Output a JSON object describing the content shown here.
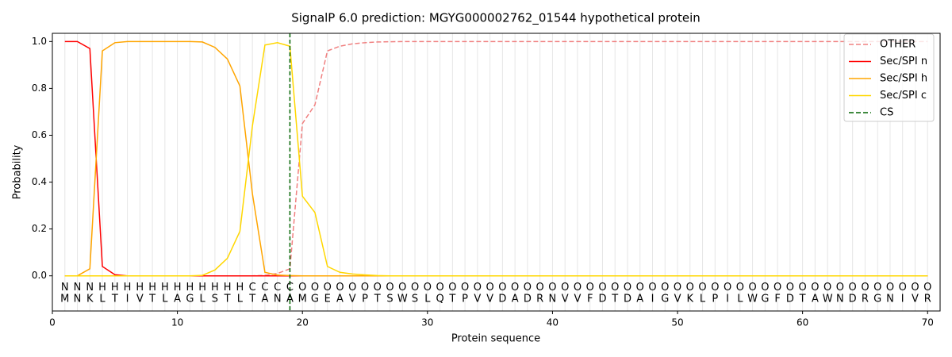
{
  "chart_data": {
    "type": "line",
    "title": "SignalP 6.0 prediction: MGYG000002762_01544 hypothetical protein",
    "x_label": "Protein sequence",
    "y_label": "Probability",
    "xlim": [
      0,
      71
    ],
    "ylim": [
      -0.15,
      1.035
    ],
    "xticks": [
      0,
      10,
      20,
      30,
      40,
      50,
      60,
      70
    ],
    "yticks": [
      {
        "value": 0,
        "label": "0.0"
      },
      {
        "value": 0.2,
        "label": "0.2"
      },
      {
        "value": 0.4,
        "label": "0.4"
      },
      {
        "value": 0.6,
        "label": "0.6"
      },
      {
        "value": 0.8,
        "label": "0.8"
      },
      {
        "value": 1,
        "label": "1.0"
      }
    ],
    "vertical_grid": true,
    "legend_position": "upper right",
    "x": [
      1,
      2,
      3,
      4,
      5,
      6,
      7,
      8,
      9,
      10,
      11,
      12,
      13,
      14,
      15,
      16,
      17,
      18,
      19,
      20,
      21,
      22,
      23,
      24,
      25,
      26,
      27,
      28,
      29,
      30,
      31,
      32,
      33,
      34,
      35,
      36,
      37,
      38,
      39,
      40,
      41,
      42,
      43,
      44,
      45,
      46,
      47,
      48,
      49,
      50,
      51,
      52,
      53,
      54,
      55,
      56,
      57,
      58,
      59,
      60,
      61,
      62,
      63,
      64,
      65,
      66,
      67,
      68,
      69,
      70
    ],
    "series": [
      {
        "name": "OTHER",
        "color": "#f08080",
        "dashed": true,
        "values": [
          0,
          0,
          0,
          0,
          0,
          0,
          0,
          0,
          0,
          0,
          0,
          0,
          0,
          0,
          0,
          0,
          0.002,
          0.01,
          0.03,
          0.65,
          0.73,
          0.96,
          0.98,
          0.99,
          0.995,
          0.998,
          0.999,
          1,
          1,
          1,
          1,
          1,
          1,
          1,
          1,
          1,
          1,
          1,
          1,
          1,
          1,
          1,
          1,
          1,
          1,
          1,
          1,
          1,
          1,
          1,
          1,
          1,
          1,
          1,
          1,
          1,
          1,
          1,
          1,
          1,
          1,
          1,
          1,
          1,
          1,
          1,
          1,
          1,
          1,
          1
        ]
      },
      {
        "name": "Sec/SPI n",
        "color": "#ff0000",
        "dashed": false,
        "values": [
          1,
          1,
          0.97,
          0.04,
          0.005,
          0,
          0,
          0,
          0,
          0,
          0,
          0,
          0,
          0,
          0,
          0,
          0,
          0,
          0,
          0,
          0,
          0,
          0,
          0,
          0,
          0,
          0,
          0,
          0,
          0,
          0,
          0,
          0,
          0,
          0,
          0,
          0,
          0,
          0,
          0,
          0,
          0,
          0,
          0,
          0,
          0,
          0,
          0,
          0,
          0,
          0,
          0,
          0,
          0,
          0,
          0,
          0,
          0,
          0,
          0,
          0,
          0,
          0,
          0,
          0,
          0,
          0,
          0,
          0,
          0
        ]
      },
      {
        "name": "Sec/SPI h",
        "color": "#ffa500",
        "dashed": false,
        "values": [
          0,
          0,
          0.03,
          0.96,
          0.995,
          1,
          1,
          1,
          1,
          1,
          1,
          0.998,
          0.975,
          0.925,
          0.81,
          0.35,
          0.015,
          0.003,
          0.001,
          0,
          0,
          0,
          0,
          0,
          0,
          0,
          0,
          0,
          0,
          0,
          0,
          0,
          0,
          0,
          0,
          0,
          0,
          0,
          0,
          0,
          0,
          0,
          0,
          0,
          0,
          0,
          0,
          0,
          0,
          0,
          0,
          0,
          0,
          0,
          0,
          0,
          0,
          0,
          0,
          0,
          0,
          0,
          0,
          0,
          0,
          0,
          0,
          0,
          0,
          0
        ]
      },
      {
        "name": "Sec/SPI c",
        "color": "#ffd700",
        "dashed": false,
        "values": [
          0,
          0,
          0,
          0,
          0,
          0,
          0,
          0,
          0,
          0,
          0,
          0.002,
          0.025,
          0.075,
          0.19,
          0.64,
          0.985,
          0.995,
          0.98,
          0.34,
          0.27,
          0.04,
          0.015,
          0.008,
          0.004,
          0.001,
          0,
          0,
          0,
          0,
          0,
          0,
          0,
          0,
          0,
          0,
          0,
          0,
          0,
          0,
          0,
          0,
          0,
          0,
          0,
          0,
          0,
          0,
          0,
          0,
          0,
          0,
          0,
          0,
          0,
          0,
          0,
          0,
          0,
          0,
          0,
          0,
          0,
          0,
          0,
          0,
          0,
          0,
          0,
          0
        ]
      }
    ],
    "vlines": [
      {
        "name": "CS",
        "x": 19,
        "color": "#006400",
        "dashed": true
      }
    ],
    "region_labels": [
      "N",
      "N",
      "N",
      "H",
      "H",
      "H",
      "H",
      "H",
      "H",
      "H",
      "H",
      "H",
      "H",
      "H",
      "H",
      "C",
      "C",
      "C",
      "C",
      "O",
      "O",
      "O",
      "O",
      "O",
      "O",
      "O",
      "O",
      "O",
      "O",
      "O",
      "O",
      "O",
      "O",
      "O",
      "O",
      "O",
      "O",
      "O",
      "O",
      "O",
      "O",
      "O",
      "O",
      "O",
      "O",
      "O",
      "O",
      "O",
      "O",
      "O",
      "O",
      "O",
      "O",
      "O",
      "O",
      "O",
      "O",
      "O",
      "O",
      "O",
      "O",
      "O",
      "O",
      "O",
      "O",
      "O",
      "O",
      "O",
      "O",
      "O"
    ],
    "region_colors": {
      "N": "#ff0000",
      "H": "#ffa500",
      "C": "#ffd700",
      "O": "#808080"
    },
    "sequence": [
      "M",
      "N",
      "K",
      "L",
      "T",
      "I",
      "V",
      "T",
      "L",
      "A",
      "G",
      "L",
      "S",
      "T",
      "L",
      "T",
      "A",
      "N",
      "A",
      "M",
      "G",
      "E",
      "A",
      "V",
      "P",
      "T",
      "S",
      "W",
      "S",
      "L",
      "Q",
      "T",
      "P",
      "V",
      "V",
      "D",
      "A",
      "D",
      "R",
      "N",
      "V",
      "V",
      "F",
      "D",
      "T",
      "D",
      "A",
      "I",
      "G",
      "V",
      "K",
      "L",
      "P",
      "I",
      "L",
      "W",
      "G",
      "F",
      "D",
      "T",
      "A",
      "W",
      "N",
      "D",
      "R",
      "G",
      "N",
      "I",
      "V",
      "R"
    ]
  }
}
